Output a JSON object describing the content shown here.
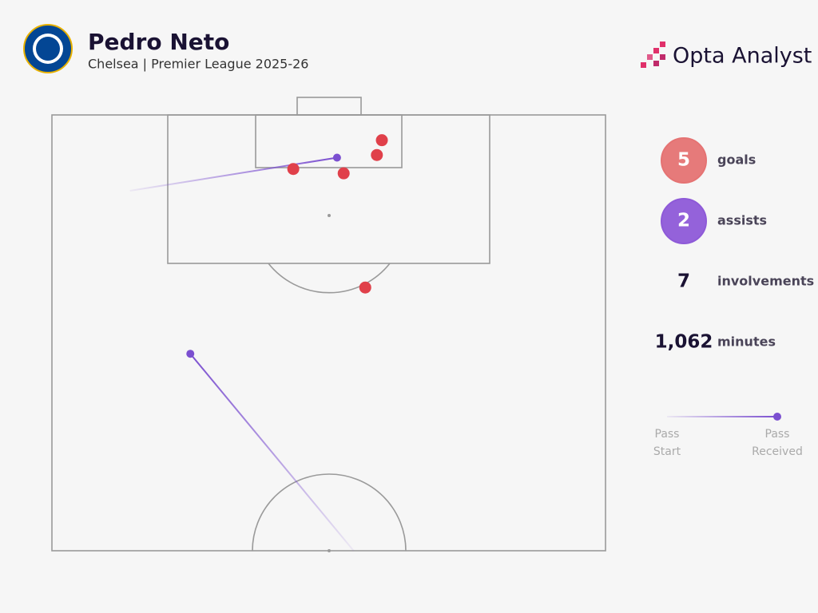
{
  "header": {
    "title": "Pedro Neto",
    "subtitle": "Chelsea | Premier League 2025-26",
    "brand": "Opta Analyst"
  },
  "chart_data": {
    "type": "pitch",
    "xlim": [
      0,
      100
    ],
    "ylim": [
      50,
      100
    ],
    "goals": {
      "color": "#e0404a",
      "x": [
        59.6,
        58.7,
        43.6,
        52.7,
        56.6
      ],
      "y": [
        97.1,
        95.4,
        93.8,
        93.3,
        80.2
      ]
    },
    "assists": {
      "color": "#7b4fd0",
      "start_x": [
        14.1,
        54.5
      ],
      "start_y": [
        91.3,
        50
      ],
      "end_x": [
        51.5,
        25.0
      ],
      "end_y": [
        95.1,
        72.6
      ]
    },
    "legend": {
      "start": [
        "Pass",
        "Start"
      ],
      "end": [
        "Pass",
        "Received"
      ]
    }
  },
  "stats": [
    {
      "value": 5,
      "label": "goals",
      "color": "#e57373"
    },
    {
      "value": 2,
      "label": "assists",
      "color": "#8e5ad8"
    },
    {
      "value": 7,
      "label": "involvements"
    },
    {
      "value": 1062,
      "value_label": "1,062",
      "label": "minutes"
    }
  ]
}
